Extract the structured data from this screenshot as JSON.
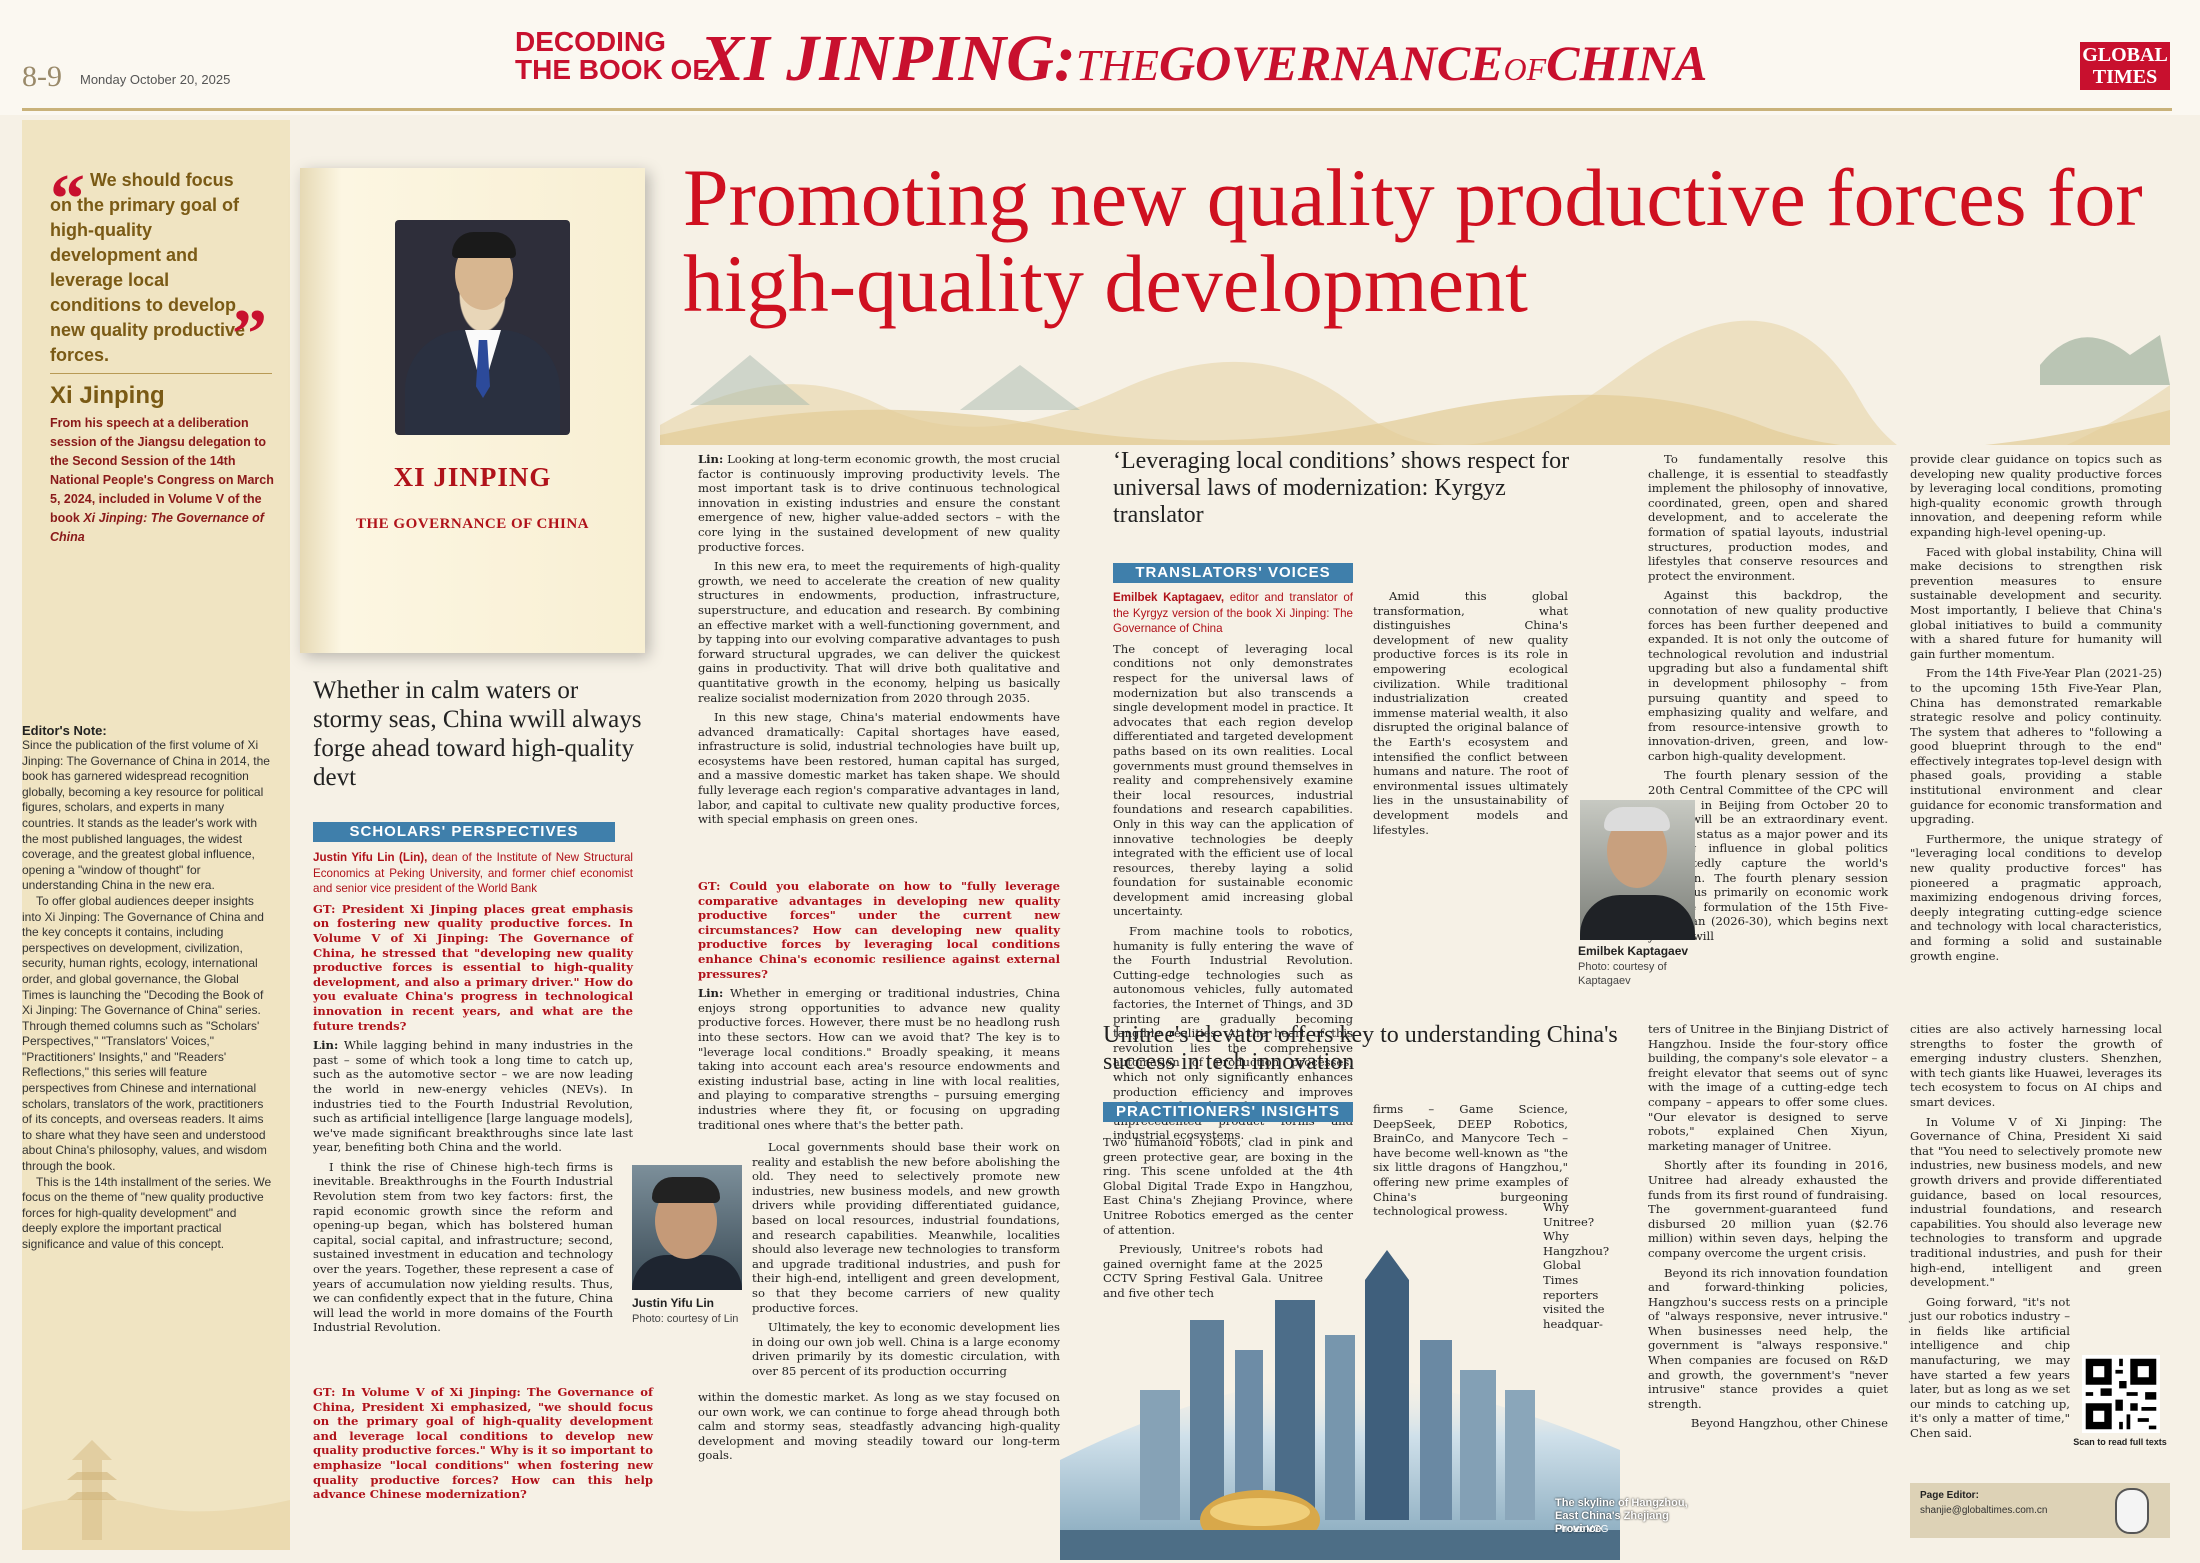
{
  "masthead": {
    "page_number": "8-9",
    "date": "Monday October 20, 2025",
    "decoding_line1": "DECODING",
    "decoding_line2": "THE BOOK OF",
    "series_title_a": "XI JINPING:",
    "series_title_b": "THE",
    "series_title_c": "GOVERNANCE",
    "series_title_d": "OF",
    "series_title_e": "CHINA",
    "logo_line1": "GLOBAL",
    "logo_line2": "TIMES"
  },
  "quote": {
    "open_mark": "“",
    "close_mark": "”",
    "text": "We should focus on the primary goal of high-quality development and leverage local conditions to develop new quality productive forces.",
    "author": "Xi Jinping",
    "source_a": "From his speech at a deliberation session of the Jiangsu delegation to the Second Session of the 14th National People's Congress on March 5, 2024, included in Volume V of the book ",
    "source_b": "Xi Jinping: The Governance of China"
  },
  "book": {
    "author": "XI JINPING",
    "title": "THE GOVERNANCE OF CHINA"
  },
  "headline": "Promoting new quality productive forces for high-quality development",
  "editors_note": {
    "heading": "Editor's Note:",
    "p1": "Since the publication of the first volume of Xi Jinping: The Governance of China in 2014, the book has garnered widespread recognition globally, becoming a key resource for political figures, scholars, and experts in many countries. It stands as the leader's work with the most published languages, the widest coverage, and the greatest global influence, opening a \"window of thought\" for understanding China in the new era.",
    "p2": "To offer global audiences deeper insights into Xi Jinping: The Governance of China and the key concepts it contains, including perspectives on development, civilization, security, human rights, ecology, international order, and global governance, the Global Times is launching the \"Decoding the Book of Xi Jinping: The Governance of China\" series. Through themed columns such as \"Scholars' Perspectives,\" \"Translators' Voices,\" \"Practitioners' Insights,\" and \"Readers' Reflections,\" this series will feature perspectives from Chinese and international scholars, translators of the work, practitioners of its concepts, and overseas readers. It aims to share what they have seen and understood about China's philosophy, values, and wisdom through the book.",
    "p3": "This is the 14th installment of the series. We focus on the theme of \"new quality productive forces for high-quality development\" and deeply explore the important practical significance and value of this concept."
  },
  "section1": {
    "headline": "Whether in calm waters or stormy seas, China wwill always forge ahead toward high-quality devt",
    "tag": "SCHOLARS' PERSPECTIVES",
    "byline_name": "Justin Yifu Lin (Lin),",
    "byline_desc": " dean of the Institute of New Structural Economics at Peking University, and former chief economist and senior vice president of the World Bank",
    "q1": "GT: President Xi Jinping places great emphasis on fostering new quality productive forces. In Volume V of Xi Jinping: The Governance of China, he stressed that \"developing new quality productive forces is essential to high-quality development, and also a primary driver.\" How do you evaluate China's progress in technological innovation in recent years, and what are the future trends?",
    "a1_label": "Lin:",
    "a1": " While lagging behind in many industries in the past – some of which took a long time to catch up, such as the automotive sector – we are now leading the world in new-energy vehicles (NEVs). In industries tied to the Fourth Industrial Revolution, such as artificial intelligence [large language models], we've made significant breakthroughs since late last year, benefiting both China and the world.",
    "a1b": "I think the rise of Chinese high-tech firms is inevitable. Breakthroughs in the Fourth Industrial Revolution stem from two key factors: first, the rapid economic growth since the reform and opening-up began, which has bolstered human capital, social capital, and infrastructure; second, sustained investment in education and technology over the years. Together, these represent a case of years of accumulation now yielding results. Thus, we can confidently expect that in the future, China will lead the world in more domains of the Fourth Industrial Revolution.",
    "q2": "GT: In Volume V of Xi Jinping: The Governance of China, President Xi emphasized, \"we should focus on the primary goal of high-quality development and leverage local conditions to develop new quality productive forces.\" Why is it so important to emphasize \"local conditions\" when fostering new quality productive forces? How can this help advance Chinese modernization?",
    "a2_label": "Lin:",
    "a2": " Looking at long-term economic growth, the most crucial factor is continuously improving productivity levels. The most important task is to drive continuous technological innovation in existing industries and ensure the constant emergence of new, higher value-added sectors – with the core lying in the sustained development of new quality productive forces.",
    "a2b": "In this new era, to meet the requirements of high-quality growth, we need to accelerate the creation of new quality structures in endowments, production, infrastructure, superstructure, and education and research. By combining an effective market with a well-functioning government, and by tapping into our evolving comparative advantages to push forward structural upgrades, we can deliver the quickest gains in productivity. That will drive both qualitative and quantitative growth in the economy, helping us basically realize socialist modernization from 2020 through 2035.",
    "a2c": "In this new stage, China's material endowments have advanced dramatically: Capital shortages have eased, infrastructure is solid, industrial technologies have built up, ecosystems have been restored, human capital has surged, and a massive domestic market has taken shape. We should fully leverage each region's comparative advantages in land, labor, and capital to cultivate new quality productive forces, with special emphasis on green ones.",
    "q3": "GT: Could you elaborate on how to \"fully leverage comparative advantages in developing new quality productive forces\" under the current new circumstances? How can developing new quality productive forces by leveraging local conditions enhance China's economic resilience against external pressures?",
    "a3_label": "Lin:",
    "a3": " Whether in emerging or traditional industries, China enjoys strong opportunities to advance new quality productive forces. However, there must be no headlong rush into these sectors. How can we avoid that? The key is to \"leverage local conditions.\" Broadly speaking, it means taking into account each area's resource endowments and existing industrial base, acting in line with local realities, and playing to comparative strengths – pursuing emerging industries where they fit, or focusing on upgrading traditional ones where that's the better path.",
    "a3b": "Local governments should base their work on reality and establish the new before abolishing the old. They need to selectively promote new industries, new business models, and new growth drivers while providing differentiated guidance, based on local resources, industrial foundations, and research capabilities. Meanwhile, localities should also leverage new technologies to transform and upgrade traditional industries, and push for their high-end, intelligent and green development, so that they become carriers of new quality productive forces.",
    "a3c": "Ultimately, the key to economic development lies in doing our own job well. China is a large economy driven primarily by its domestic circulation, with over 85 percent of its production occurring",
    "a3d": "within the domestic market. As long as we stay focused on our own work, we can continue to forge ahead through both calm and stormy seas, steadfastly advancing high-quality development and moving steadily toward our long-term goals.",
    "photo_name": "Justin Yifu Lin",
    "photo_credit": "Photo: courtesy of Lin"
  },
  "section2": {
    "headline": "‘Leveraging local conditions’ shows respect for universal laws of modernization: Kyrgyz translator",
    "tag": "TRANSLATORS' VOICES",
    "byline_name": "Emilbek Kaptagaev,",
    "byline_desc": " editor and translator of the Kyrgyz version of the book Xi Jinping: The Governance of China",
    "p1": "The concept of leveraging local conditions not only demonstrates respect for the universal laws of modernization but also transcends a single development model in practice. It advocates that each region develop differentiated and targeted development paths based on its own realities. Local governments must ground themselves in reality and comprehensively examine their local resources, industrial foundations and research capabilities. Only in this way can the application of innovative technologies be deeply integrated with the efficient use of local resources, thereby laying a solid foundation for sustainable economic development amid increasing global uncertainty.",
    "p2": "From machine tools to robotics, humanity is fully entering the wave of the Fourth Industrial Revolution. Cutting-edge technologies such as autonomous vehicles, fully automated factories, the Internet of Things, and 3D printing are gradually becoming tangible realities. At the heart of this revolution lies the comprehensive automation of production processes, which not only significantly enhances production efficiency and improves worker safety but also gives rise to unprecedented product forms and industrial ecosystems.",
    "p3": "Amid this global transformation, what distinguishes China's development of new quality productive forces is its role in empowering ecological civilization. While traditional industrialization created immense material wealth, it also disrupted the original balance of the Earth's ecosystem and intensified the conflict between humans and nature. The root of environmental issues ultimately lies in the unsustainability of development models and lifestyles.",
    "p4": "To fundamentally resolve this challenge, it is essential to steadfastly implement the philosophy of innovative, coordinated, green, open and shared development, and to accelerate the formation of spatial layouts, industrial structures, production modes, and lifestyles that conserve resources and protect the environment.",
    "p5": "Against this backdrop, the connotation of new quality productive forces has been further deepened and expanded. It is not only the outcome of technological revolution and industrial upgrading but also a fundamental shift in development philosophy – from pursuing quantity and speed to emphasizing quality and welfare, and from resource-intensive growth to innovation-driven, green, and low-carbon high-quality development.",
    "p6": "The fourth plenary session of the 20th Central Committee of the CPC will be held in Beijing from October 20 to 23. It will be an extraordinary event. China's status as a major power and its growing influence in global politics undoubtedly capture the world's attention. The fourth plenary session will focus primarily on economic work and the formulation of the 15th Five-Year Plan (2026-30), which begins next year. It will",
    "p7": "provide clear guidance on topics such as developing new quality productive forces by leveraging local conditions, promoting high-quality economic growth through innovation, and deepening reform while expanding high-level opening-up.",
    "p8": "Faced with global instability, China will make decisions to strengthen risk prevention measures to ensure sustainable development and security. Most importantly, I believe that China's global initiatives to build a community with a shared future for humanity will gain further momentum.",
    "p9": "From the 14th Five-Year Plan (2021-25) to the upcoming 15th Five-Year Plan, China has demonstrated remarkable strategic resolve and policy continuity. The system that adheres to \"following a good blueprint through to the end\" effectively integrates top-level design with phased goals, providing a stable institutional environment and clear guidance for economic transformation and upgrading.",
    "p10": "Furthermore, the unique strategy of \"leveraging local conditions to develop new quality productive forces\" has pioneered a pragmatic approach, maximizing endogenous driving forces, deeply integrating cutting-edge science and technology with local characteristics, and forming a solid and sustainable growth engine.",
    "photo_name": "Emilbek Kaptagaev",
    "photo_credit": "Photo: courtesy of Kaptagaev"
  },
  "section3": {
    "headline": "Unitree's elevator offers key to understanding China's success in tech innovation",
    "tag": "PRACTITIONERS' INSIGHTS",
    "p1": "Two humanoid robots, clad in pink and green protective gear, are boxing in the ring. This scene unfolded at the 4th Global Digital Trade Expo in Hangzhou, East China's Zhejiang Province, where Unitree Robotics emerged as the center of attention.",
    "p2": "Previously, Unitree's robots had gained overnight fame at the 2025 CCTV Spring Festival Gala. Unitree and five other tech",
    "p3": "firms – Game Science, DeepSeek, DEEP Robotics, BrainCo, and Manycore Tech – have become well-known as \"the six little dragons of Hangzhou,\" offering new prime examples of China's burgeoning technological prowess.",
    "p4": "Why Unitree? Why Hangzhou? Global Times reporters visited the headquar-",
    "p5": "ters of Unitree in the Binjiang District of Hangzhou. Inside the four-story office building, the company's sole elevator – a freight elevator that seems out of sync with the image of a cutting-edge tech company – appears to offer some clues. \"Our elevator is designed to serve robots,\" explained Chen Xiyun, marketing manager of Unitree.",
    "p6": "Shortly after its founding in 2016, Unitree had already exhausted the funds from its first round of fundraising. The government-guaranteed fund disbursed 20 million yuan ($2.76 million) within seven days, helping the company overcome the urgent crisis.",
    "p7": "Beyond its rich innovation foundation and forward-thinking policies, Hangzhou's success rests on a principle of \"always responsive, never intrusive.\" When businesses need help, the government is \"always responsive.\" When companies are focused on R&D and growth, the government's \"never intrusive\" stance provides a quiet strength.",
    "p8": "Beyond Hangzhou, other Chinese",
    "p9": "cities are also actively harnessing local strengths to foster the growth of emerging industry clusters. Shenzhen, with tech giants like Huawei, leverages its tech ecosystem to focus on AI chips and smart devices.",
    "p10": "In Volume V of Xi Jinping: The Governance of China, President Xi said that \"You need to selectively promote new industries, new business models, and new growth drivers and provide differentiated guidance, based on local resources, industrial foundations, and research capabilities. You should also leverage new technologies to transform and upgrade traditional industries, and push for their high-end, intelligent and green development.\"",
    "p11": "Going forward, \"it's not just our robotics industry – in fields like artificial intelligence and chip manufacturing, we may have started a few years later, but as long as we set our minds to catching up, it's only a matter of time,\" Chen said.",
    "skyline_caption": "The skyline of Hangzhou, East China's Zhejiang Province",
    "skyline_credit": "Photo: VCG"
  },
  "footer": {
    "qr_caption": "Scan to read full texts",
    "editor_label": "Page Editor:",
    "editor_email": "shanjie@globaltimes.com.cn"
  },
  "colors": {
    "accent_red": "#c8102e",
    "tag_blue": "#3f7fab",
    "quote_gold": "#7a5a15",
    "panel_tan": "#f0e4c2"
  }
}
